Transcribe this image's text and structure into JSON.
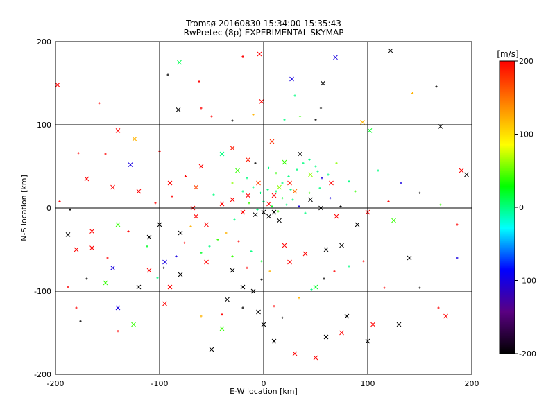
{
  "title_line1": "Tromsø 20160830 15:34:00-15:35:43",
  "title_line2": "RwPretec (8p) EXPERIMENTAL SKYMAP",
  "chart_data": {
    "type": "scatter",
    "title": "Tromsø 20160830 15:34:00-15:35:43 / RwPretec (8p) EXPERIMENTAL SKYMAP",
    "xlabel": "E-W location [km]",
    "ylabel": "N-S location [km]",
    "xlim": [
      -200,
      200
    ],
    "ylim": [
      -200,
      200
    ],
    "xticks": [
      "-200",
      "-100",
      "0",
      "100",
      "200"
    ],
    "yticks": [
      "200",
      "100",
      "0",
      "-100",
      "-200"
    ],
    "grid": true,
    "colorbar": {
      "label": "[m/s]",
      "range": [
        -200,
        200
      ],
      "ticks": [
        "200",
        "100",
        "0",
        "-100",
        "-200"
      ],
      "colors": [
        "#000000",
        "#5a0082",
        "#0000ff",
        "#00ffff",
        "#00ff00",
        "#ffff00",
        "#ff8000",
        "#ff0000"
      ]
    },
    "series": [
      {
        "marker": "x",
        "points": [
          [
            122,
            189,
            -200
          ],
          [
            -4,
            185,
            200
          ],
          [
            69,
            181,
            -100
          ],
          [
            -81,
            175,
            10
          ],
          [
            27,
            155,
            -100
          ],
          [
            57,
            150,
            -200
          ],
          [
            -198,
            148,
            200
          ],
          [
            -82,
            118,
            -200
          ],
          [
            -2,
            128,
            200
          ],
          [
            -140,
            93,
            200
          ],
          [
            102,
            93,
            20
          ],
          [
            170,
            98,
            -200
          ],
          [
            95,
            103,
            120
          ],
          [
            -124,
            83,
            120
          ],
          [
            -128,
            52,
            -100
          ],
          [
            -30,
            72,
            190
          ],
          [
            8,
            80,
            180
          ],
          [
            -40,
            65,
            0
          ],
          [
            -15,
            58,
            190
          ],
          [
            35,
            65,
            -200
          ],
          [
            20,
            55,
            40
          ],
          [
            -60,
            50,
            200
          ],
          [
            45,
            40,
            60
          ],
          [
            65,
            30,
            200
          ],
          [
            -120,
            20,
            200
          ],
          [
            -170,
            35,
            200
          ],
          [
            -145,
            25,
            200
          ],
          [
            -65,
            25,
            170
          ],
          [
            -90,
            30,
            200
          ],
          [
            -30,
            10,
            200
          ],
          [
            -15,
            15,
            200
          ],
          [
            5,
            5,
            200
          ],
          [
            10,
            15,
            200
          ],
          [
            15,
            25,
            60
          ],
          [
            25,
            30,
            190
          ],
          [
            -5,
            30,
            170
          ],
          [
            30,
            20,
            150
          ],
          [
            0,
            -5,
            -200
          ],
          [
            5,
            -10,
            -200
          ],
          [
            10,
            -5,
            -200
          ],
          [
            15,
            -15,
            -200
          ],
          [
            -8,
            -8,
            -200
          ],
          [
            -20,
            -5,
            200
          ],
          [
            -40,
            5,
            200
          ],
          [
            -65,
            -10,
            200
          ],
          [
            -80,
            -30,
            -200
          ],
          [
            -100,
            -20,
            -200
          ],
          [
            -110,
            -35,
            -200
          ],
          [
            -140,
            -20,
            40
          ],
          [
            -165,
            -28,
            200
          ],
          [
            -180,
            -50,
            200
          ],
          [
            -165,
            -48,
            200
          ],
          [
            -145,
            -72,
            -100
          ],
          [
            -152,
            -90,
            40
          ],
          [
            -120,
            -95,
            -200
          ],
          [
            -110,
            -75,
            200
          ],
          [
            -95,
            -65,
            -100
          ],
          [
            -80,
            -80,
            -200
          ],
          [
            -90,
            -95,
            200
          ],
          [
            -95,
            -115,
            200
          ],
          [
            -125,
            -140,
            40
          ],
          [
            -140,
            -120,
            -100
          ],
          [
            -55,
            -65,
            200
          ],
          [
            -30,
            -75,
            -200
          ],
          [
            -35,
            -110,
            -200
          ],
          [
            -20,
            -95,
            -200
          ],
          [
            -10,
            -100,
            -200
          ],
          [
            -5,
            -125,
            -200
          ],
          [
            0,
            -140,
            -200
          ],
          [
            -40,
            -145,
            40
          ],
          [
            -50,
            -170,
            -200
          ],
          [
            10,
            -160,
            -200
          ],
          [
            30,
            -175,
            200
          ],
          [
            50,
            -180,
            200
          ],
          [
            60,
            -155,
            -200
          ],
          [
            75,
            -150,
            200
          ],
          [
            80,
            -130,
            -200
          ],
          [
            100,
            -160,
            -200
          ],
          [
            105,
            -140,
            200
          ],
          [
            130,
            -140,
            -200
          ],
          [
            175,
            -130,
            200
          ],
          [
            140,
            -60,
            -200
          ],
          [
            125,
            -15,
            40
          ],
          [
            100,
            -5,
            200
          ],
          [
            90,
            -20,
            -200
          ],
          [
            75,
            -45,
            -200
          ],
          [
            60,
            -50,
            -200
          ],
          [
            40,
            -55,
            200
          ],
          [
            25,
            -65,
            200
          ],
          [
            20,
            -45,
            200
          ],
          [
            50,
            -95,
            20
          ],
          [
            190,
            45,
            200
          ],
          [
            195,
            40,
            -200
          ],
          [
            -188,
            -32,
            -200
          ],
          [
            -68,
            0,
            200
          ],
          [
            -55,
            -20,
            200
          ],
          [
            45,
            10,
            -200
          ],
          [
            55,
            0,
            -200
          ],
          [
            70,
            -10,
            200
          ],
          [
            -25,
            45,
            40
          ]
        ]
      },
      {
        "marker": "plus",
        "points": [
          [
            -158,
            126,
            200
          ],
          [
            -92,
            160,
            -200
          ],
          [
            -62,
            152,
            200
          ],
          [
            -60,
            120,
            200
          ],
          [
            -50,
            110,
            200
          ],
          [
            -30,
            105,
            -200
          ],
          [
            -10,
            112,
            120
          ],
          [
            0,
            100,
            -100
          ],
          [
            20,
            106,
            0
          ],
          [
            35,
            110,
            40
          ],
          [
            50,
            106,
            -200
          ],
          [
            55,
            120,
            -200
          ],
          [
            30,
            135,
            0
          ],
          [
            -20,
            182,
            200
          ],
          [
            166,
            146,
            -200
          ],
          [
            143,
            138,
            120
          ],
          [
            -178,
            66,
            200
          ],
          [
            -152,
            65,
            200
          ],
          [
            -100,
            68,
            200
          ],
          [
            -75,
            38,
            200
          ],
          [
            -8,
            54,
            -200
          ],
          [
            5,
            48,
            0
          ],
          [
            12,
            42,
            40
          ],
          [
            24,
            38,
            0
          ],
          [
            32,
            46,
            0
          ],
          [
            38,
            54,
            0
          ],
          [
            44,
            58,
            0
          ],
          [
            50,
            50,
            0
          ],
          [
            52,
            44,
            0
          ],
          [
            56,
            36,
            -100
          ],
          [
            62,
            40,
            0
          ],
          [
            70,
            54,
            60
          ],
          [
            82,
            32,
            0
          ],
          [
            88,
            20,
            40
          ],
          [
            110,
            45,
            0
          ],
          [
            132,
            30,
            -100
          ],
          [
            -20,
            20,
            0
          ],
          [
            -10,
            25,
            0
          ],
          [
            -3,
            18,
            0
          ],
          [
            4,
            22,
            0
          ],
          [
            12,
            20,
            0
          ],
          [
            18,
            12,
            20
          ],
          [
            22,
            4,
            0
          ],
          [
            28,
            10,
            0
          ],
          [
            34,
            2,
            -100
          ],
          [
            40,
            -6,
            0
          ],
          [
            -14,
            6,
            40
          ],
          [
            -6,
            -2,
            0
          ],
          [
            0,
            8,
            0
          ],
          [
            8,
            2,
            20
          ],
          [
            14,
            -4,
            40
          ],
          [
            -28,
            -14,
            0
          ],
          [
            -36,
            -30,
            120
          ],
          [
            -44,
            -38,
            40
          ],
          [
            -52,
            -46,
            0
          ],
          [
            -60,
            -54,
            20
          ],
          [
            -70,
            -22,
            120
          ],
          [
            -76,
            -42,
            200
          ],
          [
            -84,
            -58,
            -100
          ],
          [
            -96,
            -72,
            -200
          ],
          [
            -102,
            -84,
            0
          ],
          [
            -112,
            -46,
            20
          ],
          [
            -130,
            -28,
            200
          ],
          [
            -150,
            -60,
            200
          ],
          [
            -170,
            -85,
            -200
          ],
          [
            -188,
            -95,
            200
          ],
          [
            -180,
            -120,
            200
          ],
          [
            -176,
            -136,
            -200
          ],
          [
            -140,
            -148,
            200
          ],
          [
            -60,
            -130,
            120
          ],
          [
            -40,
            -128,
            200
          ],
          [
            -20,
            -120,
            -200
          ],
          [
            10,
            -118,
            200
          ],
          [
            18,
            -132,
            -200
          ],
          [
            34,
            -108,
            120
          ],
          [
            46,
            -98,
            0
          ],
          [
            58,
            -85,
            -200
          ],
          [
            68,
            -76,
            200
          ],
          [
            82,
            -70,
            0
          ],
          [
            96,
            -64,
            200
          ],
          [
            116,
            -96,
            200
          ],
          [
            150,
            -96,
            -200
          ],
          [
            168,
            -120,
            200
          ],
          [
            186,
            -60,
            -100
          ],
          [
            186,
            -20,
            200
          ],
          [
            170,
            4,
            40
          ],
          [
            150,
            18,
            -200
          ],
          [
            120,
            8,
            200
          ],
          [
            -196,
            8,
            200
          ],
          [
            -186,
            -2,
            -200
          ],
          [
            -104,
            6,
            200
          ],
          [
            -88,
            14,
            200
          ],
          [
            -48,
            16,
            0
          ],
          [
            -30,
            30,
            60
          ],
          [
            -16,
            36,
            0
          ],
          [
            18,
            30,
            0
          ],
          [
            26,
            22,
            0
          ],
          [
            44,
            18,
            40
          ],
          [
            54,
            24,
            0
          ],
          [
            64,
            12,
            -100
          ],
          [
            74,
            2,
            -200
          ],
          [
            -24,
            -40,
            200
          ],
          [
            -12,
            -52,
            0
          ],
          [
            -2,
            -64,
            20
          ],
          [
            6,
            -76,
            120
          ],
          [
            -2,
            -86,
            -200
          ],
          [
            -16,
            -72,
            200
          ],
          [
            -30,
            -58,
            40
          ]
        ]
      }
    ]
  }
}
